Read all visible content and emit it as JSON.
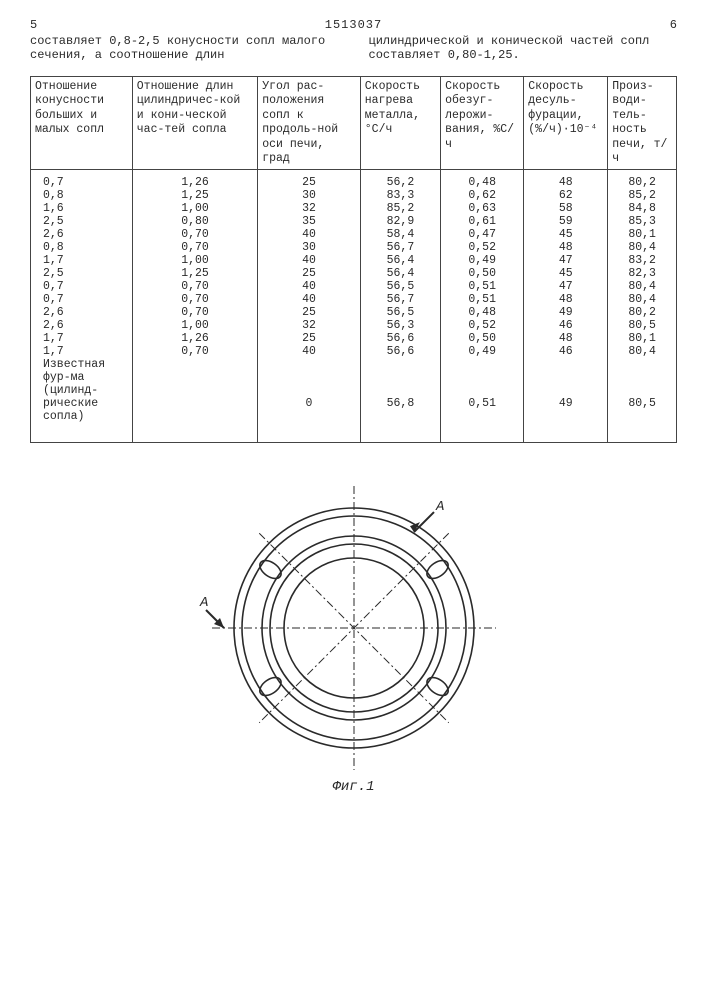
{
  "header": {
    "page_left": "5",
    "doc_number": "1513037",
    "page_right": "6"
  },
  "intro": {
    "left": "составляет 0,8-2,5 конусности сопл малого сечения, а соотношение длин",
    "right": "цилиндрической и конической частей сопл составляет 0,80-1,25."
  },
  "table": {
    "columns": [
      "Отношение конусности больших и малых сопл",
      "Отношение длин цилиндричес-кой и кони-ческой час-тей сопла",
      "Угол рас-положения сопл к продоль-ной оси печи, град",
      "Скорость нагрева металла, °С/ч",
      "Скорость обезуг-лерожи-вания, %С/ч",
      "Скорость десуль-фурации, (%/ч)·10⁻⁴",
      "Произ-води-тель-ность печи, т/ч"
    ],
    "rows": [
      [
        "0,7",
        "1,26",
        "25",
        "56,2",
        "0,48",
        "48",
        "80,2"
      ],
      [
        "0,8",
        "1,25",
        "30",
        "83,3",
        "0,62",
        "62",
        "85,2"
      ],
      [
        "1,6",
        "1,00",
        "32",
        "85,2",
        "0,63",
        "58",
        "84,8"
      ],
      [
        "2,5",
        "0,80",
        "35",
        "82,9",
        "0,61",
        "59",
        "85,3"
      ],
      [
        "2,6",
        "0,70",
        "40",
        "58,4",
        "0,47",
        "45",
        "80,1"
      ],
      [
        "0,8",
        "0,70",
        "30",
        "56,7",
        "0,52",
        "48",
        "80,4"
      ],
      [
        "1,7",
        "1,00",
        "40",
        "56,4",
        "0,49",
        "47",
        "83,2"
      ],
      [
        "2,5",
        "1,25",
        "25",
        "56,4",
        "0,50",
        "45",
        "82,3"
      ],
      [
        "0,7",
        "0,70",
        "40",
        "56,5",
        "0,51",
        "47",
        "80,4"
      ],
      [
        "0,7",
        "0,70",
        "40",
        "56,7",
        "0,51",
        "48",
        "80,4"
      ],
      [
        "2,6",
        "0,70",
        "25",
        "56,5",
        "0,48",
        "49",
        "80,2"
      ],
      [
        "2,6",
        "1,00",
        "32",
        "56,3",
        "0,52",
        "46",
        "80,5"
      ],
      [
        "1,7",
        "1,26",
        "25",
        "56,6",
        "0,50",
        "48",
        "80,1"
      ],
      [
        "1,7",
        "0,70",
        "40",
        "56,6",
        "0,49",
        "46",
        "80,4"
      ]
    ],
    "footer_label": "Известная фур-ма (цилинд-рические сопла)",
    "footer_row": [
      "",
      "",
      "0",
      "56,8",
      "0,51",
      "49",
      "80,5"
    ]
  },
  "figure": {
    "caption": "Фиг.1",
    "section_label": "A",
    "stroke_color": "#2a2a2a",
    "outer_r": 120,
    "ring_radii": [
      120,
      112,
      92,
      84,
      70
    ],
    "nozzle_ring_r": 102,
    "nozzle_rx": 12,
    "nozzle_ry": 7,
    "nozzle_angles_deg": [
      35,
      145,
      215,
      325,
      180,
      0
    ],
    "nozzle_ellipse_angles_deg": [
      35,
      145,
      215,
      325
    ],
    "horiz_only_angles_deg": [
      0,
      180
    ],
    "dashdot": "8 3 2 3",
    "stroke_width": 1.6
  }
}
